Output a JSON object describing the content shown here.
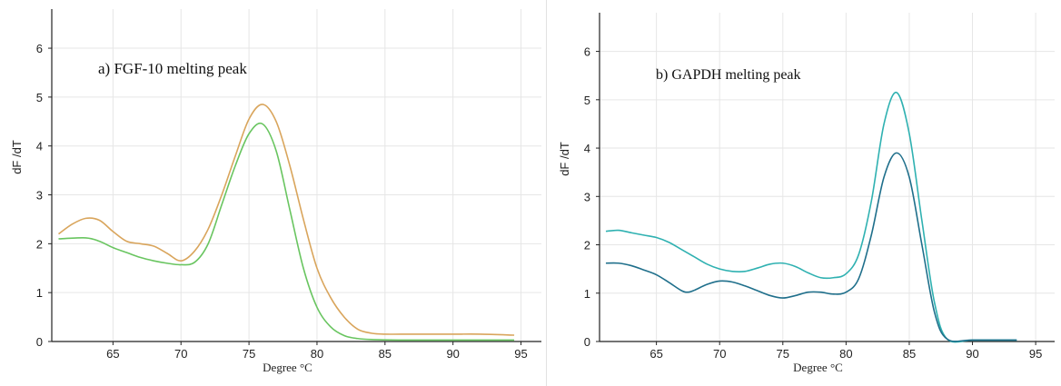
{
  "chart_data": [
    {
      "type": "line",
      "title": "a) FGF-10 melting peak",
      "xlabel": "Degree °C",
      "ylabel": "dF /dT",
      "xlim": [
        60.5,
        96.5
      ],
      "ylim": [
        0,
        6.8
      ],
      "xticks": [
        "65",
        "70",
        "75",
        "80",
        "85",
        "90",
        "95"
      ],
      "yticks": [
        "0",
        "1",
        "2",
        "3",
        "4",
        "5",
        "6"
      ],
      "grid": true,
      "series": [
        {
          "color": "#d9a55c",
          "x": [
            61,
            62,
            63,
            64,
            65,
            66,
            67,
            68,
            69,
            70,
            71,
            72,
            73,
            74,
            75,
            76,
            77,
            78,
            79,
            80,
            81,
            82,
            83,
            84,
            85,
            87,
            90,
            92,
            94.5
          ],
          "y": [
            2.2,
            2.4,
            2.52,
            2.48,
            2.25,
            2.05,
            2.0,
            1.95,
            1.8,
            1.65,
            1.85,
            2.3,
            3.0,
            3.8,
            4.55,
            4.85,
            4.5,
            3.6,
            2.5,
            1.5,
            0.9,
            0.5,
            0.25,
            0.17,
            0.15,
            0.15,
            0.15,
            0.15,
            0.13
          ]
        },
        {
          "color": "#69c560",
          "x": [
            61,
            63,
            64,
            65,
            66,
            67,
            68,
            69,
            70,
            71,
            72,
            73,
            74,
            75,
            76,
            77,
            78,
            79,
            80,
            81,
            82,
            83,
            84,
            86,
            88,
            90,
            94.5
          ],
          "y": [
            2.1,
            2.12,
            2.05,
            1.92,
            1.82,
            1.72,
            1.65,
            1.6,
            1.57,
            1.62,
            2.0,
            2.8,
            3.6,
            4.25,
            4.45,
            3.9,
            2.7,
            1.5,
            0.7,
            0.3,
            0.12,
            0.06,
            0.04,
            0.03,
            0.03,
            0.03,
            0.03
          ]
        }
      ]
    },
    {
      "type": "line",
      "title": "b) GAPDH melting peak",
      "xlabel": "Degree °C",
      "ylabel": "dF /dT",
      "xlim": [
        60.5,
        96.5
      ],
      "ylim": [
        0,
        6.8
      ],
      "xticks": [
        "65",
        "70",
        "75",
        "80",
        "85",
        "90",
        "95"
      ],
      "yticks": [
        "0",
        "1",
        "2",
        "3",
        "4",
        "5",
        "6"
      ],
      "grid": true,
      "series": [
        {
          "color": "#2fb1b1",
          "x": [
            61,
            62,
            63,
            64,
            65,
            66,
            67,
            68,
            69,
            70,
            71,
            72,
            73,
            74,
            75,
            76,
            77,
            78,
            79,
            80,
            81,
            82,
            83,
            84,
            85,
            86,
            87,
            88,
            90,
            92,
            93.5
          ],
          "y": [
            2.28,
            2.3,
            2.25,
            2.2,
            2.15,
            2.05,
            1.9,
            1.75,
            1.6,
            1.5,
            1.45,
            1.45,
            1.52,
            1.6,
            1.62,
            1.55,
            1.42,
            1.32,
            1.32,
            1.4,
            1.8,
            2.9,
            4.5,
            5.15,
            4.3,
            2.5,
            0.8,
            0.05,
            0.03,
            0.03,
            0.03
          ]
        },
        {
          "color": "#1f6f8b",
          "x": [
            61,
            62,
            63,
            64,
            65,
            66,
            67,
            67.5,
            68,
            69,
            70,
            71,
            72,
            73,
            74,
            75,
            76,
            77,
            78,
            79,
            80,
            81,
            82,
            83,
            84,
            85,
            86,
            87,
            88,
            90,
            93.5
          ],
          "y": [
            1.62,
            1.62,
            1.57,
            1.48,
            1.38,
            1.22,
            1.05,
            1.02,
            1.06,
            1.18,
            1.25,
            1.23,
            1.15,
            1.05,
            0.95,
            0.9,
            0.95,
            1.02,
            1.02,
            0.98,
            1.02,
            1.3,
            2.2,
            3.4,
            3.9,
            3.4,
            2.0,
            0.6,
            0.05,
            0.03,
            0.03
          ]
        }
      ]
    }
  ]
}
